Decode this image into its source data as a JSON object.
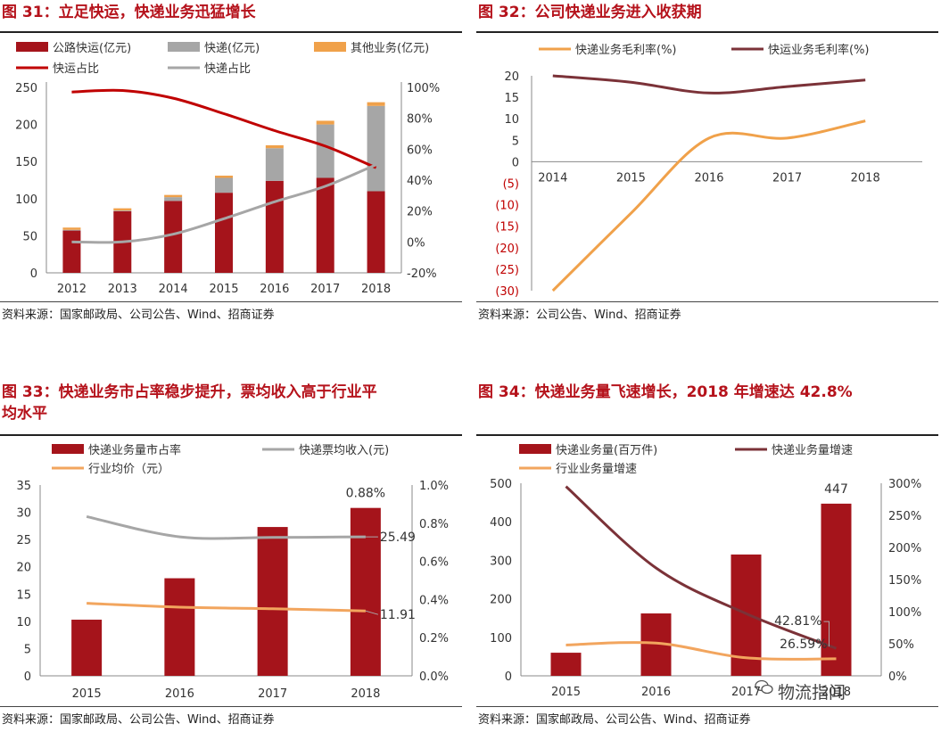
{
  "panels": [
    {
      "title": "图 31：立足快运，快递业务迅猛增长",
      "source": "资料来源：国家邮政局、公司公告、Wind、招商证券"
    },
    {
      "title": "图 32：公司快递业务进入收获期",
      "source": "资料来源：公司公告、Wind、招商证券"
    },
    {
      "title_line1": "图 33：快递业务市占率稳步提升，票均收入高于行业平",
      "title_line2": "均水平",
      "source": "资料来源：国家邮政局、公司公告、Wind、招商证券"
    },
    {
      "title": "图 34：快递业务量飞速增长，2018 年增速达 42.8%",
      "source": "资料来源：国家邮政局、公司公告、Wind、招商证券"
    }
  ],
  "watermark": "物流指闻",
  "colors": {
    "dark_red": "#a5141b",
    "gray": "#a6a6a6",
    "orange": "#f0a14a",
    "light_orange": "#f2a55e",
    "brown": "#7b3238",
    "red_text": "#c00000"
  },
  "chart_data": [
    {
      "type": "bar",
      "stacked": true,
      "categories": [
        "2012",
        "2013",
        "2014",
        "2015",
        "2016",
        "2017",
        "2018"
      ],
      "series": [
        {
          "name": "公路快运(亿元)",
          "values": [
            57,
            83,
            97,
            108,
            124,
            128,
            110
          ],
          "color": "#a5141b"
        },
        {
          "name": "快递(亿元)",
          "values": [
            1,
            1,
            5,
            20,
            44,
            72,
            115
          ],
          "color": "#a6a6a6"
        },
        {
          "name": "其他业务(亿元)",
          "values": [
            3,
            3,
            3,
            3,
            4,
            5,
            5
          ],
          "color": "#f0a14a"
        }
      ],
      "lines": [
        {
          "name": "快运占比",
          "values": [
            97,
            98,
            93,
            83,
            72,
            62,
            48
          ],
          "color": "#c00000",
          "axis": "right"
        },
        {
          "name": "快递占比",
          "values": [
            0,
            0,
            5,
            15,
            26,
            36,
            50
          ],
          "color": "#a6a6a6",
          "axis": "right"
        }
      ],
      "ylim": [
        0,
        250
      ],
      "yticks": [
        "0",
        "50",
        "100",
        "150",
        "200",
        "250"
      ],
      "y2lim": [
        -20,
        100
      ],
      "y2ticks": [
        "-20%",
        "0%",
        "20%",
        "40%",
        "60%",
        "80%",
        "100%"
      ]
    },
    {
      "type": "line",
      "categories": [
        "2014",
        "2015",
        "2016",
        "2017",
        "2018"
      ],
      "series": [
        {
          "name": "快递业务毛利率(%)",
          "values": [
            -30,
            -12,
            5.5,
            5.5,
            9.5
          ],
          "color": "#f0a14a"
        },
        {
          "name": "快运业务毛利率(%)",
          "values": [
            20,
            18.5,
            16,
            17.5,
            19
          ],
          "color": "#7b3238"
        }
      ],
      "ylim": [
        -30,
        20
      ],
      "yticks": [
        "20",
        "15",
        "10",
        "5",
        "0",
        "(5)",
        "(10)",
        "(15)",
        "(20)",
        "(25)",
        "(30)"
      ]
    },
    {
      "type": "bar",
      "categories": [
        "2015",
        "2016",
        "2017",
        "2018"
      ],
      "series": [
        {
          "name": "快递业务量市占率",
          "values": [
            10.3,
            17.9,
            27.3,
            30.8
          ],
          "color": "#a5141b"
        }
      ],
      "lines": [
        {
          "name": "快递票均收入(元)",
          "values": [
            29.2,
            25.5,
            25.4,
            25.49
          ],
          "color": "#a6a6a6"
        },
        {
          "name": "行业均价（元）",
          "values": [
            13.3,
            12.6,
            12.3,
            11.91
          ],
          "color": "#f2a55e"
        }
      ],
      "labels": {
        "bar_top": "0.88%",
        "line_gray": "25.49",
        "line_orange": "11.91"
      },
      "ylim": [
        0,
        35
      ],
      "yticks": [
        "0",
        "5",
        "10",
        "15",
        "20",
        "25",
        "30",
        "35"
      ],
      "y2lim": [
        0,
        1.0
      ],
      "y2ticks": [
        "0.0%",
        "0.2%",
        "0.4%",
        "0.6%",
        "0.8%",
        "1.0%"
      ]
    },
    {
      "type": "bar",
      "categories": [
        "2015",
        "2016",
        "2017",
        "2018"
      ],
      "series": [
        {
          "name": "快递业务量(百万件)",
          "values": [
            60,
            162,
            315,
            447
          ],
          "color": "#a5141b"
        }
      ],
      "lines": [
        {
          "name": "快递业务量增速",
          "values": [
            295,
            168,
            97,
            42.81
          ],
          "color": "#7b3238"
        },
        {
          "name": "行业业务量增速",
          "values": [
            48,
            51,
            28,
            26.59
          ],
          "color": "#f2a55e"
        }
      ],
      "labels": {
        "bar_top": "447",
        "line_brown": "42.81%",
        "line_orange": "26.59%"
      },
      "ylim": [
        0,
        500
      ],
      "yticks": [
        "0",
        "100",
        "200",
        "300",
        "400",
        "500"
      ],
      "y2lim": [
        0,
        300
      ],
      "y2ticks": [
        "0%",
        "50%",
        "100%",
        "150%",
        "200%",
        "250%",
        "300%"
      ]
    }
  ]
}
